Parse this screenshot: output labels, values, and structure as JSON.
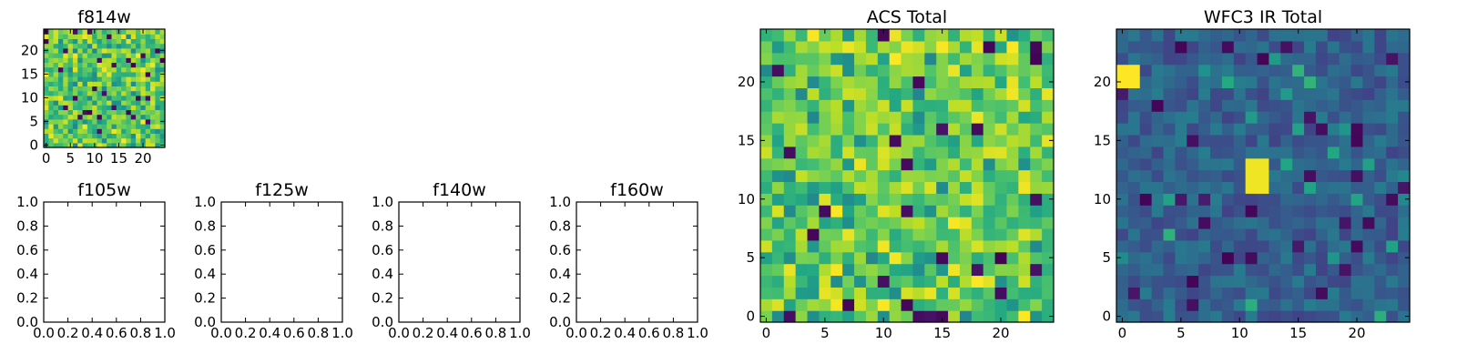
{
  "chart_data": [
    {
      "type": "heatmap",
      "title": "f814w",
      "xlim": [
        -0.5,
        24.5
      ],
      "ylim": [
        -0.5,
        24.5
      ],
      "xticks": [
        0,
        5,
        10,
        15,
        20
      ],
      "yticks": [
        0,
        5,
        10,
        15,
        20
      ],
      "tick_labels_x": [
        "0",
        "5",
        "10",
        "15",
        "20"
      ],
      "tick_labels_y": [
        "0",
        "5",
        "10",
        "15",
        "20"
      ],
      "grid": false,
      "colormap": "viridis",
      "seed": 101,
      "value_range": [
        0,
        1
      ],
      "texture": "ACS"
    },
    {
      "type": "heatmap",
      "title": "f105w",
      "xlim": [
        0.0,
        1.0
      ],
      "ylim": [
        0.0,
        1.0
      ],
      "xticks": [
        0.0,
        0.2,
        0.4,
        0.6,
        0.8,
        1.0
      ],
      "yticks": [
        0.0,
        0.2,
        0.4,
        0.6,
        0.8,
        1.0
      ],
      "tick_labels_x": [
        "0.0",
        "0.2",
        "0.4",
        "0.6",
        "0.8",
        "1.0"
      ],
      "tick_labels_y": [
        "0.0",
        "0.2",
        "0.4",
        "0.6",
        "0.8",
        "1.0"
      ],
      "empty": true
    },
    {
      "type": "heatmap",
      "title": "f125w",
      "xlim": [
        0.0,
        1.0
      ],
      "ylim": [
        0.0,
        1.0
      ],
      "xticks": [
        0.0,
        0.2,
        0.4,
        0.6,
        0.8,
        1.0
      ],
      "yticks": [
        0.0,
        0.2,
        0.4,
        0.6,
        0.8,
        1.0
      ],
      "tick_labels_x": [
        "0.0",
        "0.2",
        "0.4",
        "0.6",
        "0.8",
        "1.0"
      ],
      "tick_labels_y": [
        "0.0",
        "0.2",
        "0.4",
        "0.6",
        "0.8",
        "1.0"
      ],
      "empty": true
    },
    {
      "type": "heatmap",
      "title": "f140w",
      "xlim": [
        0.0,
        1.0
      ],
      "ylim": [
        0.0,
        1.0
      ],
      "xticks": [
        0.0,
        0.2,
        0.4,
        0.6,
        0.8,
        1.0
      ],
      "yticks": [
        0.0,
        0.2,
        0.4,
        0.6,
        0.8,
        1.0
      ],
      "tick_labels_x": [
        "0.0",
        "0.2",
        "0.4",
        "0.6",
        "0.8",
        "1.0"
      ],
      "tick_labels_y": [
        "0.0",
        "0.2",
        "0.4",
        "0.6",
        "0.8",
        "1.0"
      ],
      "empty": true
    },
    {
      "type": "heatmap",
      "title": "f160w",
      "xlim": [
        0.0,
        1.0
      ],
      "ylim": [
        0.0,
        1.0
      ],
      "xticks": [
        0.0,
        0.2,
        0.4,
        0.6,
        0.8,
        1.0
      ],
      "yticks": [
        0.0,
        0.2,
        0.4,
        0.6,
        0.8,
        1.0
      ],
      "tick_labels_x": [
        "0.0",
        "0.2",
        "0.4",
        "0.6",
        "0.8",
        "1.0"
      ],
      "tick_labels_y": [
        "0.0",
        "0.2",
        "0.4",
        "0.6",
        "0.8",
        "1.0"
      ],
      "empty": true
    },
    {
      "type": "heatmap",
      "title": "ACS Total",
      "xlim": [
        -0.5,
        24.5
      ],
      "ylim": [
        -0.5,
        24.5
      ],
      "xticks": [
        0,
        5,
        10,
        15,
        20
      ],
      "yticks": [
        0,
        5,
        10,
        15,
        20
      ],
      "tick_labels_x": [
        "0",
        "5",
        "10",
        "15",
        "20"
      ],
      "tick_labels_y": [
        "0",
        "5",
        "10",
        "15",
        "20"
      ],
      "grid": false,
      "colormap": "viridis",
      "seed": 202,
      "value_range": [
        0,
        1
      ],
      "texture": "ACS"
    },
    {
      "type": "heatmap",
      "title": "WFC3 IR Total",
      "xlim": [
        -0.5,
        24.5
      ],
      "ylim": [
        -0.5,
        24.5
      ],
      "xticks": [
        0,
        5,
        10,
        15,
        20
      ],
      "yticks": [
        0,
        5,
        10,
        15,
        20
      ],
      "tick_labels_x": [
        "0",
        "5",
        "10",
        "15",
        "20"
      ],
      "tick_labels_y": [
        "0",
        "5",
        "10",
        "15",
        "20"
      ],
      "grid": false,
      "colormap": "viridis",
      "seed": 303,
      "value_range": [
        0,
        1
      ],
      "texture": "IR"
    }
  ]
}
